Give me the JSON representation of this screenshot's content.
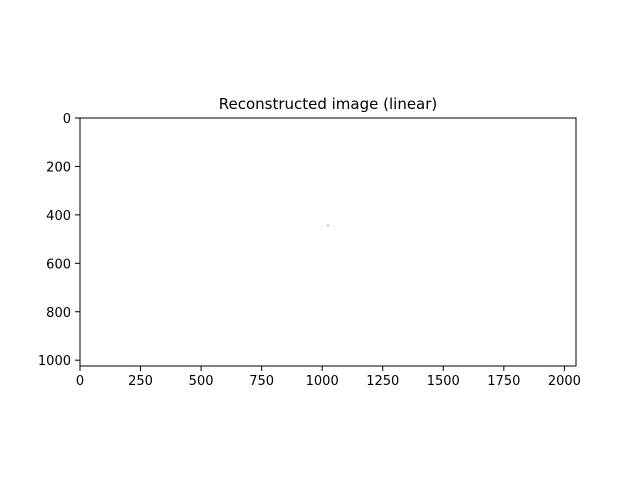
{
  "chart_data": {
    "type": "heatmap",
    "title": "Reconstructed image (linear)",
    "xlabel": "",
    "ylabel": "",
    "xlim": [
      0,
      2048
    ],
    "ylim": [
      1024,
      0
    ],
    "y_axis_inverted": true,
    "grid": false,
    "legend": "none",
    "x_ticks": [
      0,
      250,
      500,
      750,
      1000,
      1250,
      1500,
      1750,
      2000
    ],
    "y_ticks": [
      0,
      200,
      400,
      600,
      800,
      1000
    ],
    "background_color": "#ffffff",
    "points": [
      {
        "x": 1024,
        "y": 443,
        "color": "#000000"
      }
    ]
  }
}
